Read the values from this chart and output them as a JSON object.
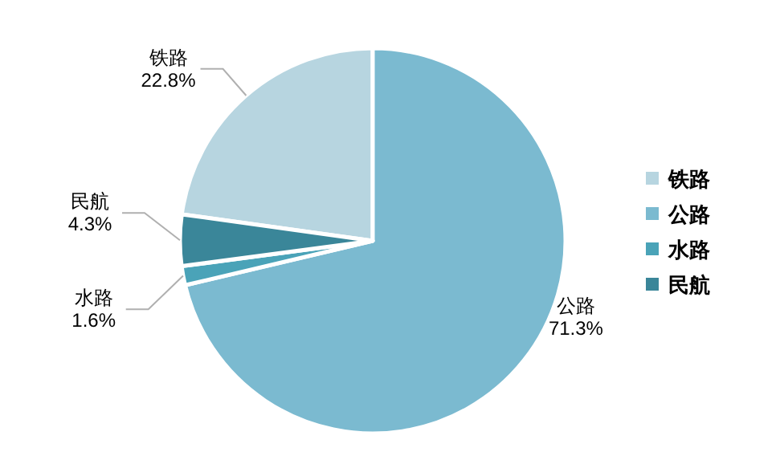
{
  "chart_data": {
    "type": "pie",
    "categories": [
      "铁路",
      "公路",
      "水路",
      "民航"
    ],
    "values": [
      22.8,
      71.3,
      1.6,
      4.3
    ],
    "colors": [
      "#b7d5e0",
      "#7bbad0",
      "#4aa3b8",
      "#3a8699"
    ],
    "value_labels": [
      "22.8%",
      "71.3%",
      "1.6%",
      "4.3%"
    ],
    "legend": "right"
  }
}
